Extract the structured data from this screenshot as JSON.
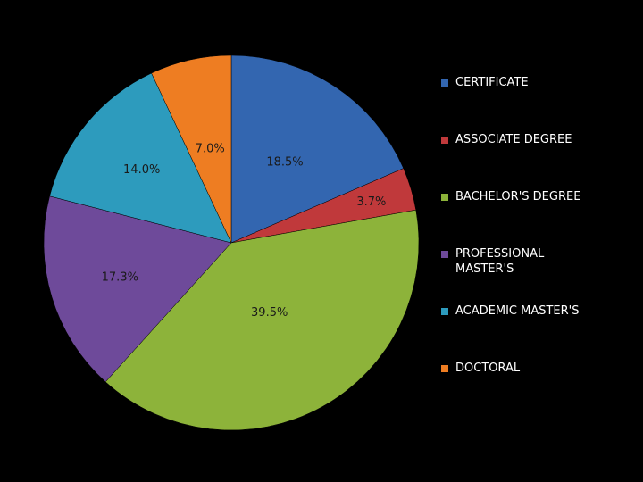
{
  "chart_data": {
    "type": "pie",
    "title": "",
    "slices": [
      {
        "label": "CERTIFICATE",
        "value": 18.5,
        "display": "18.5%",
        "color": "#3366b0"
      },
      {
        "label": "ASSOCIATE DEGREE",
        "value": 3.7,
        "display": "3.7%",
        "color": "#c0393b"
      },
      {
        "label": "BACHELOR'S DEGREE",
        "value": 39.5,
        "display": "39.5%",
        "color": "#8db33a"
      },
      {
        "label": "PROFESSIONAL MASTER'S",
        "value": 17.3,
        "display": "17.3%",
        "color": "#6e4a9a"
      },
      {
        "label": "ACADEMIC MASTER'S",
        "value": 14.0,
        "display": "14.0%",
        "color": "#2d9bbd"
      },
      {
        "label": "DOCTORAL",
        "value": 7.0,
        "display": "7.0%",
        "color": "#ee7d22"
      }
    ],
    "start_angle": "12 o'clock",
    "direction": "clockwise",
    "legend_position": "right"
  }
}
